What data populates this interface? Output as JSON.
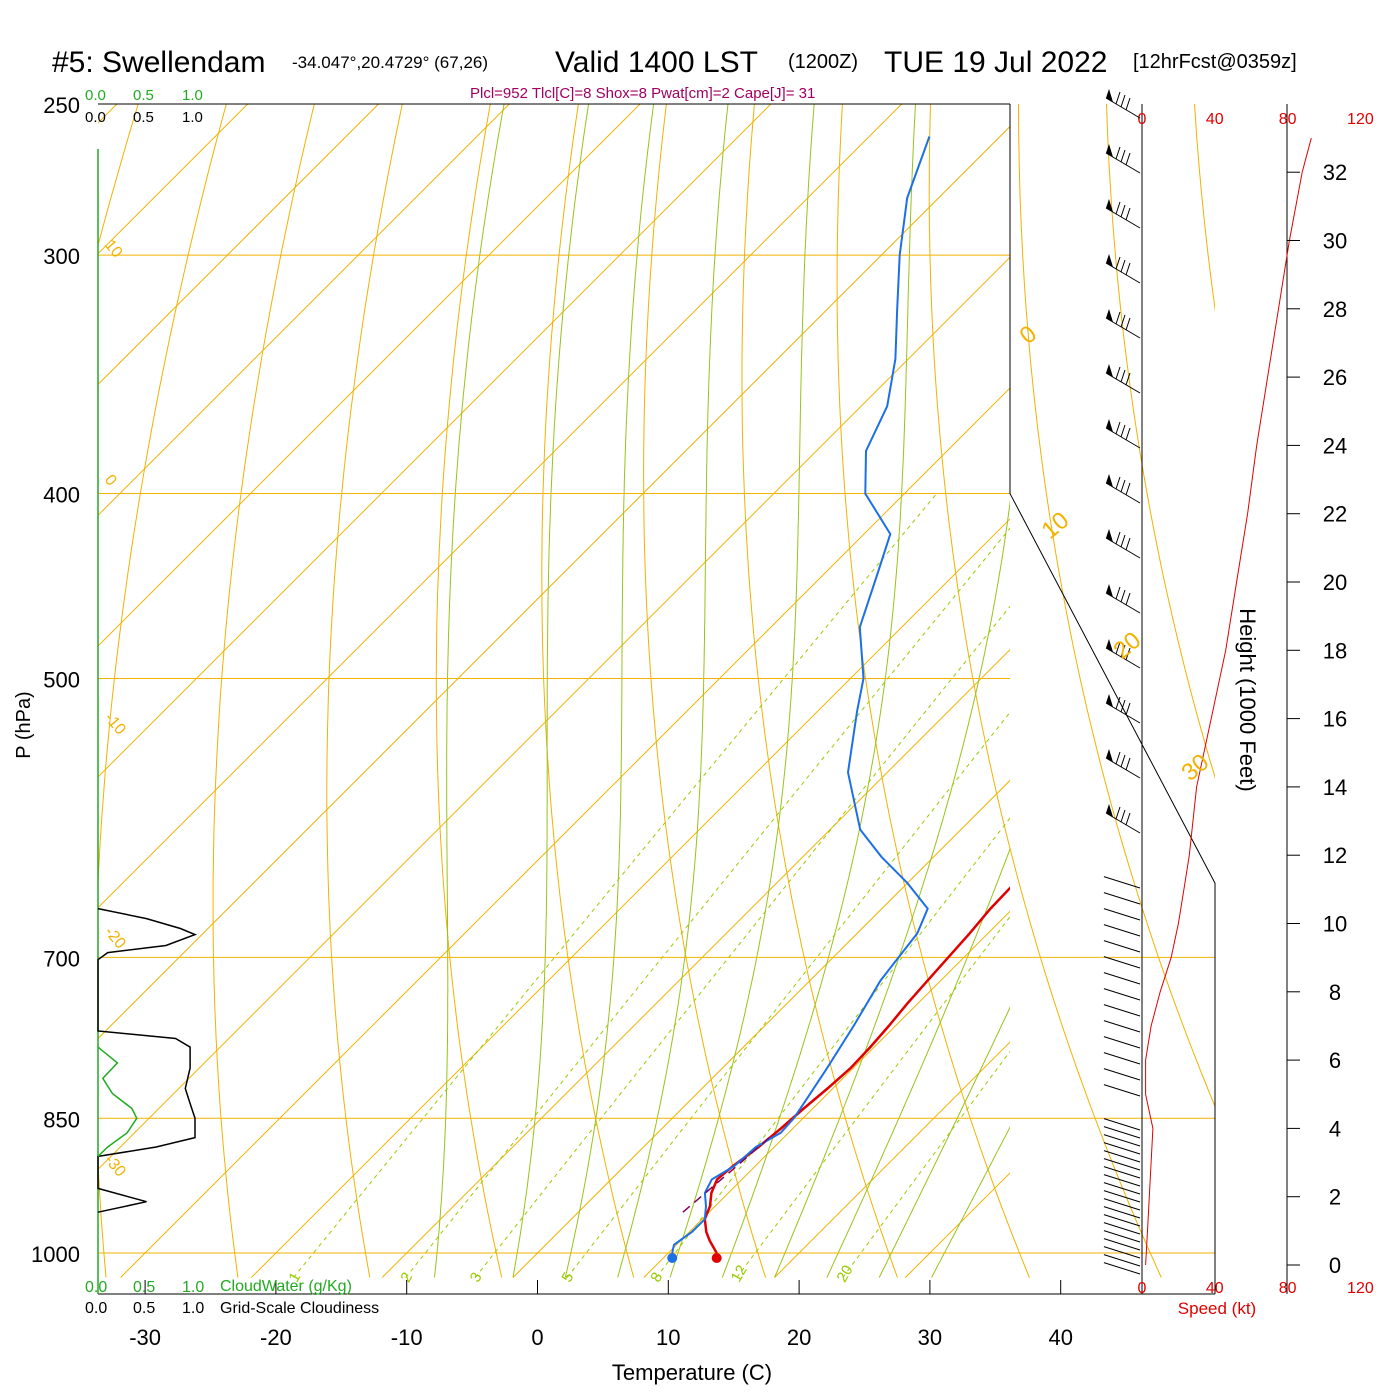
{
  "header": {
    "station": "#5: Swellendam",
    "coords": "-34.047°,20.4729° (67,26)",
    "valid_prefix": "Valid 1400 LST",
    "utc": "(1200Z)",
    "date": "TUE 19 Jul 2022",
    "forecast": "[12hrFcst@0359z]",
    "indices": "Plcl=952 Tlcl[C]=8 Shox=8 Pwat[cm]=2 Cape[J]= 31"
  },
  "colors": {
    "temperature": "#e00000",
    "dewpoint": "#1c6fe6",
    "isotherm": "#f2b200",
    "dry_adiabat": "#f2b200",
    "moist_adiabat": "#99c21a",
    "mixing_ratio": "#99cc00",
    "cloud_water": "#22aa22",
    "parcel": "#800060",
    "wind_speed": "#e00000",
    "indices_text": "#a00060"
  },
  "chart_data": {
    "type": "line",
    "skew_t": true,
    "xlabel": "Temperature (C)",
    "ylabel": "P (hPa)",
    "x_ticks": [
      "-30",
      "-20",
      "-10",
      "0",
      "10",
      "20",
      "30",
      "40"
    ],
    "x_tick_values": [
      -30,
      -20,
      -10,
      0,
      10,
      20,
      30,
      40
    ],
    "p_ticks": [
      "250",
      "300",
      "400",
      "500",
      "700",
      "850",
      "1000"
    ],
    "p_tick_values": [
      250,
      300,
      400,
      500,
      700,
      850,
      1000
    ],
    "ylim": [
      1030,
      250
    ],
    "isotherm_labels": [
      "10",
      "0",
      "-10",
      "-20",
      "-30"
    ],
    "isotherm_label_values": [
      10,
      0,
      -10,
      -20,
      -30
    ],
    "dry_adiabat_labels": [
      "0",
      "10",
      "20",
      "30"
    ],
    "mixing_ratio_labels": [
      "1",
      "2",
      "3",
      "5",
      "8",
      "12",
      "20"
    ],
    "series": [
      {
        "name": "Temperature",
        "p": [
          1000,
          985,
          975,
          960,
          945,
          930,
          915,
          900,
          880,
          860,
          840,
          820,
          800,
          780,
          760,
          740,
          720,
          700,
          680,
          660,
          640,
          620,
          600,
          570,
          540,
          510,
          480,
          460,
          440,
          420,
          400,
          380,
          360,
          340,
          320,
          300,
          280,
          260
        ],
        "t": [
          13.7,
          12.2,
          11.3,
          10.2,
          9.6,
          8.7,
          8.1,
          8.3,
          8.8,
          9.1,
          9.3,
          9.6,
          9.8,
          9.7,
          9.5,
          9.2,
          9.0,
          8.8,
          8.6,
          8.3,
          8.2,
          8.5,
          8.8,
          10.0,
          11.5,
          13.5,
          15.5,
          16.7,
          17.0,
          16.5,
          15.5,
          14.2,
          13.0,
          12.1,
          11.9,
          12.2,
          12.8,
          13.6
        ]
      },
      {
        "name": "Dewpoint",
        "p": [
          1000,
          990,
          975,
          960,
          945,
          930,
          915,
          900,
          880,
          865,
          850,
          830,
          800,
          760,
          720,
          680,
          660,
          640,
          620,
          600,
          560,
          520,
          500,
          470,
          440,
          420,
          400,
          380,
          360,
          340,
          320,
          300,
          280,
          260
        ],
        "td": [
          10.3,
          9.8,
          10.2,
          10.2,
          9.3,
          8.2,
          7.7,
          8.4,
          8.6,
          9.4,
          9.3,
          8.8,
          8.0,
          6.8,
          5.4,
          4.6,
          3.5,
          0.0,
          -4.0,
          -7.7,
          -13.0,
          -17.0,
          -19.0,
          -23.2,
          -26.0,
          -28.0,
          -33.0,
          -36.2,
          -38.0,
          -41.0,
          -44.7,
          -48.6,
          -52.4,
          -55.4
        ]
      },
      {
        "name": "Parcel",
        "p": [
          952,
          900,
          870
        ],
        "t": [
          8,
          8.6,
          8.9
        ]
      }
    ],
    "cloudiness_black": [
      {
        "p": 660,
        "v": 0.0
      },
      {
        "p": 668,
        "v": 0.5
      },
      {
        "p": 676,
        "v": 0.85
      },
      {
        "p": 681,
        "v": 1.0
      },
      {
        "p": 690,
        "v": 0.7
      },
      {
        "p": 696,
        "v": 0.1
      },
      {
        "p": 702,
        "v": 0.0
      },
      {
        "p": 765,
        "v": 0.0
      },
      {
        "p": 772,
        "v": 0.8
      },
      {
        "p": 780,
        "v": 0.95
      },
      {
        "p": 800,
        "v": 0.95
      },
      {
        "p": 820,
        "v": 0.9
      },
      {
        "p": 835,
        "v": 0.95
      },
      {
        "p": 850,
        "v": 1.0
      },
      {
        "p": 870,
        "v": 1.0
      },
      {
        "p": 880,
        "v": 0.6
      },
      {
        "p": 890,
        "v": 0.0
      },
      {
        "p": 925,
        "v": 0.0
      },
      {
        "p": 940,
        "v": 0.5
      },
      {
        "p": 952,
        "v": 0.0
      }
    ],
    "cloudwater_green": [
      {
        "p": 780,
        "v": 0.0
      },
      {
        "p": 795,
        "v": 0.2
      },
      {
        "p": 810,
        "v": 0.05
      },
      {
        "p": 825,
        "v": 0.15
      },
      {
        "p": 840,
        "v": 0.35
      },
      {
        "p": 850,
        "v": 0.4
      },
      {
        "p": 865,
        "v": 0.3
      },
      {
        "p": 880,
        "v": 0.1
      },
      {
        "p": 890,
        "v": 0.0
      }
    ],
    "wind_speed_profile": {
      "xlabel": "Speed (kt)",
      "ticks": [
        "0",
        "40",
        "80",
        "120"
      ],
      "tick_values": [
        0,
        40,
        80,
        120
      ],
      "height_kft": [
        0,
        1,
        2,
        3,
        4,
        5,
        6,
        7,
        8,
        9,
        10,
        11,
        12,
        14,
        16,
        18,
        20,
        22,
        24,
        26,
        28,
        30,
        32,
        33
      ],
      "speed_kt": [
        2,
        3,
        4,
        5,
        6,
        2,
        2,
        5,
        10,
        16,
        20,
        23,
        26,
        30,
        38,
        46,
        52,
        58,
        63,
        69,
        75,
        81,
        88,
        93
      ]
    },
    "height_axis": {
      "label": "Height (1000 Feet)",
      "ticks": [
        "0",
        "2",
        "4",
        "6",
        "8",
        "10",
        "12",
        "14",
        "16",
        "18",
        "20",
        "22",
        "24",
        "26",
        "28",
        "30",
        "32"
      ],
      "tick_values": [
        0,
        2,
        4,
        6,
        8,
        10,
        12,
        14,
        16,
        18,
        20,
        22,
        24,
        26,
        28,
        30,
        32
      ]
    },
    "top_scale_green": [
      "0.0",
      "0.5",
      "1.0"
    ],
    "top_scale_black": [
      "0.0",
      "0.5",
      "1.0"
    ],
    "bottom_legend_green": {
      "ticks": [
        "0.0",
        "0.5",
        "1.0"
      ],
      "label": "CloudWater (g/Kg)"
    },
    "bottom_legend_black": {
      "ticks": [
        "0.0",
        "0.5",
        "1.0"
      ],
      "label": "Grid-Scale Cloudiness"
    }
  }
}
